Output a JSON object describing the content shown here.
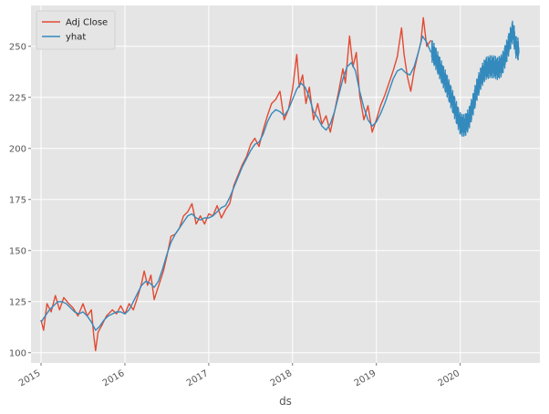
{
  "chart_data": {
    "type": "line",
    "title": "",
    "xlabel": "ds",
    "ylabel": "",
    "xlim": [
      2014.88,
      2020.95
    ],
    "ylim": [
      95,
      270
    ],
    "grid": true,
    "legend_position": "top-left",
    "x_ticks": [
      {
        "x": 2015,
        "label": "2015"
      },
      {
        "x": 2016,
        "label": "2016"
      },
      {
        "x": 2017,
        "label": "2017"
      },
      {
        "x": 2018,
        "label": "2018"
      },
      {
        "x": 2019,
        "label": "2019"
      },
      {
        "x": 2020,
        "label": "2020"
      }
    ],
    "y_ticks": [
      {
        "y": 100,
        "label": "100"
      },
      {
        "y": 125,
        "label": "125"
      },
      {
        "y": 150,
        "label": "150"
      },
      {
        "y": 175,
        "label": "175"
      },
      {
        "y": 200,
        "label": "200"
      },
      {
        "y": 225,
        "label": "225"
      },
      {
        "y": 250,
        "label": "250"
      }
    ],
    "series": [
      {
        "name": "Adj Close",
        "color": "#E24A33",
        "points": [
          [
            2015.0,
            116
          ],
          [
            2015.03,
            111
          ],
          [
            2015.07,
            124
          ],
          [
            2015.12,
            120
          ],
          [
            2015.17,
            128
          ],
          [
            2015.22,
            121
          ],
          [
            2015.27,
            127
          ],
          [
            2015.33,
            124
          ],
          [
            2015.38,
            122
          ],
          [
            2015.44,
            118
          ],
          [
            2015.5,
            124
          ],
          [
            2015.55,
            118
          ],
          [
            2015.6,
            121
          ],
          [
            2015.63,
            108
          ],
          [
            2015.65,
            101
          ],
          [
            2015.68,
            110
          ],
          [
            2015.72,
            113
          ],
          [
            2015.78,
            118
          ],
          [
            2015.85,
            121
          ],
          [
            2015.9,
            119
          ],
          [
            2015.95,
            123
          ],
          [
            2016.0,
            119
          ],
          [
            2016.05,
            124
          ],
          [
            2016.1,
            121
          ],
          [
            2016.15,
            127
          ],
          [
            2016.2,
            134
          ],
          [
            2016.23,
            140
          ],
          [
            2016.27,
            133
          ],
          [
            2016.31,
            138
          ],
          [
            2016.35,
            126
          ],
          [
            2016.38,
            130
          ],
          [
            2016.42,
            135
          ],
          [
            2016.46,
            140
          ],
          [
            2016.5,
            147
          ],
          [
            2016.55,
            157
          ],
          [
            2016.6,
            158
          ],
          [
            2016.65,
            161
          ],
          [
            2016.7,
            167
          ],
          [
            2016.75,
            169
          ],
          [
            2016.8,
            173
          ],
          [
            2016.85,
            163
          ],
          [
            2016.9,
            167
          ],
          [
            2016.95,
            163
          ],
          [
            2017.0,
            168
          ],
          [
            2017.05,
            167
          ],
          [
            2017.1,
            172
          ],
          [
            2017.15,
            166
          ],
          [
            2017.2,
            170
          ],
          [
            2017.25,
            173
          ],
          [
            2017.3,
            182
          ],
          [
            2017.35,
            187
          ],
          [
            2017.4,
            192
          ],
          [
            2017.45,
            196
          ],
          [
            2017.5,
            202
          ],
          [
            2017.55,
            205
          ],
          [
            2017.6,
            201
          ],
          [
            2017.65,
            209
          ],
          [
            2017.7,
            216
          ],
          [
            2017.75,
            222
          ],
          [
            2017.8,
            224
          ],
          [
            2017.85,
            228
          ],
          [
            2017.9,
            214
          ],
          [
            2017.95,
            219
          ],
          [
            2018.0,
            229
          ],
          [
            2018.05,
            246
          ],
          [
            2018.08,
            230
          ],
          [
            2018.12,
            236
          ],
          [
            2018.16,
            222
          ],
          [
            2018.2,
            230
          ],
          [
            2018.25,
            214
          ],
          [
            2018.3,
            222
          ],
          [
            2018.35,
            212
          ],
          [
            2018.4,
            216
          ],
          [
            2018.45,
            208
          ],
          [
            2018.5,
            218
          ],
          [
            2018.55,
            228
          ],
          [
            2018.6,
            239
          ],
          [
            2018.63,
            232
          ],
          [
            2018.68,
            255
          ],
          [
            2018.72,
            240
          ],
          [
            2018.76,
            247
          ],
          [
            2018.8,
            226
          ],
          [
            2018.85,
            214
          ],
          [
            2018.9,
            221
          ],
          [
            2018.95,
            208
          ],
          [
            2019.0,
            214
          ],
          [
            2019.05,
            221
          ],
          [
            2019.1,
            226
          ],
          [
            2019.15,
            232
          ],
          [
            2019.2,
            238
          ],
          [
            2019.25,
            245
          ],
          [
            2019.3,
            259
          ],
          [
            2019.33,
            246
          ],
          [
            2019.37,
            235
          ],
          [
            2019.41,
            228
          ],
          [
            2019.45,
            238
          ],
          [
            2019.5,
            247
          ],
          [
            2019.53,
            252
          ],
          [
            2019.56,
            264
          ],
          [
            2019.6,
            250
          ],
          [
            2019.65,
            253
          ]
        ]
      },
      {
        "name": "yhat",
        "color": "#348ABD",
        "points": [
          [
            2015.0,
            115
          ],
          [
            2015.05,
            118
          ],
          [
            2015.1,
            121
          ],
          [
            2015.15,
            123
          ],
          [
            2015.2,
            125
          ],
          [
            2015.25,
            125
          ],
          [
            2015.3,
            124
          ],
          [
            2015.35,
            122
          ],
          [
            2015.4,
            120
          ],
          [
            2015.45,
            119
          ],
          [
            2015.5,
            120
          ],
          [
            2015.55,
            118
          ],
          [
            2015.6,
            115
          ],
          [
            2015.65,
            111
          ],
          [
            2015.7,
            113
          ],
          [
            2015.75,
            116
          ],
          [
            2015.8,
            118
          ],
          [
            2015.85,
            119
          ],
          [
            2015.9,
            120
          ],
          [
            2015.95,
            120
          ],
          [
            2016.0,
            119
          ],
          [
            2016.05,
            121
          ],
          [
            2016.1,
            125
          ],
          [
            2016.15,
            129
          ],
          [
            2016.2,
            133
          ],
          [
            2016.25,
            135
          ],
          [
            2016.3,
            134
          ],
          [
            2016.35,
            132
          ],
          [
            2016.4,
            135
          ],
          [
            2016.45,
            141
          ],
          [
            2016.5,
            148
          ],
          [
            2016.55,
            154
          ],
          [
            2016.6,
            158
          ],
          [
            2016.65,
            161
          ],
          [
            2016.7,
            164
          ],
          [
            2016.75,
            167
          ],
          [
            2016.8,
            168
          ],
          [
            2016.85,
            166
          ],
          [
            2016.9,
            165
          ],
          [
            2016.95,
            166
          ],
          [
            2017.0,
            166
          ],
          [
            2017.05,
            167
          ],
          [
            2017.1,
            169
          ],
          [
            2017.15,
            171
          ],
          [
            2017.2,
            172
          ],
          [
            2017.25,
            176
          ],
          [
            2017.3,
            181
          ],
          [
            2017.35,
            186
          ],
          [
            2017.4,
            191
          ],
          [
            2017.45,
            195
          ],
          [
            2017.5,
            199
          ],
          [
            2017.55,
            202
          ],
          [
            2017.6,
            203
          ],
          [
            2017.65,
            207
          ],
          [
            2017.7,
            213
          ],
          [
            2017.75,
            217
          ],
          [
            2017.8,
            219
          ],
          [
            2017.85,
            218
          ],
          [
            2017.9,
            216
          ],
          [
            2017.95,
            219
          ],
          [
            2018.0,
            224
          ],
          [
            2018.05,
            229
          ],
          [
            2018.1,
            232
          ],
          [
            2018.15,
            230
          ],
          [
            2018.2,
            225
          ],
          [
            2018.25,
            218
          ],
          [
            2018.3,
            215
          ],
          [
            2018.35,
            211
          ],
          [
            2018.4,
            209
          ],
          [
            2018.45,
            212
          ],
          [
            2018.5,
            218
          ],
          [
            2018.55,
            226
          ],
          [
            2018.6,
            234
          ],
          [
            2018.65,
            240
          ],
          [
            2018.7,
            242
          ],
          [
            2018.75,
            238
          ],
          [
            2018.8,
            228
          ],
          [
            2018.85,
            220
          ],
          [
            2018.9,
            214
          ],
          [
            2018.95,
            211
          ],
          [
            2019.0,
            213
          ],
          [
            2019.05,
            217
          ],
          [
            2019.1,
            222
          ],
          [
            2019.15,
            228
          ],
          [
            2019.2,
            234
          ],
          [
            2019.25,
            238
          ],
          [
            2019.3,
            239
          ],
          [
            2019.35,
            237
          ],
          [
            2019.4,
            236
          ],
          [
            2019.45,
            240
          ],
          [
            2019.5,
            247
          ],
          [
            2019.55,
            255
          ],
          [
            2019.6,
            252
          ],
          [
            2019.65,
            247
          ]
        ]
      },
      {
        "name": "yhat",
        "color": "#348ABD",
        "points": [
          [
            2019.66,
            248
          ],
          [
            2019.7,
            245
          ],
          [
            2019.75,
            240
          ],
          [
            2019.8,
            235
          ],
          [
            2019.85,
            230
          ],
          [
            2019.9,
            224
          ],
          [
            2019.95,
            218
          ],
          [
            2020.0,
            212
          ],
          [
            2020.05,
            211
          ],
          [
            2020.1,
            214
          ],
          [
            2020.15,
            221
          ],
          [
            2020.2,
            229
          ],
          [
            2020.25,
            235
          ],
          [
            2020.3,
            239
          ],
          [
            2020.35,
            240
          ],
          [
            2020.4,
            240
          ],
          [
            2020.45,
            239
          ],
          [
            2020.5,
            241
          ],
          [
            2020.55,
            247
          ],
          [
            2020.6,
            254
          ],
          [
            2020.63,
            258
          ],
          [
            2020.66,
            250
          ],
          [
            2020.7,
            248
          ]
        ],
        "band": 5.5
      }
    ]
  }
}
